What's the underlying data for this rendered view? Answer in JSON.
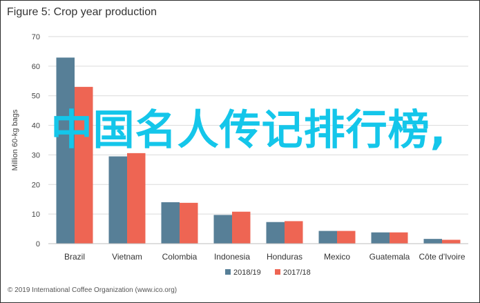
{
  "title": "Figure 5: Crop year production",
  "overlay_text": "中国名人传记排行榜,",
  "source": "© 2019 International Coffee Organization (www.ico.org)",
  "colors": {
    "series1": "#577f97",
    "series2": "#ee6553",
    "grid": "#dadada",
    "overlay": "#14c6ea"
  },
  "chart_data": {
    "type": "bar",
    "title": "Figure 5: Crop year production",
    "ylabel": "Million 60-kg bags",
    "xlabel": "",
    "ylim": [
      0,
      70
    ],
    "yticks": [
      0,
      10,
      20,
      30,
      40,
      50,
      60,
      70
    ],
    "grid": true,
    "legend_position": "bottom",
    "categories": [
      "Brazil",
      "Vietnam",
      "Colombia",
      "Indonesia",
      "Honduras",
      "Mexico",
      "Guatemala",
      "Côte d'Ivoire"
    ],
    "series": [
      {
        "name": "2018/19",
        "values": [
          62.9,
          29.5,
          14.0,
          9.7,
          7.3,
          4.3,
          3.8,
          1.6
        ]
      },
      {
        "name": "2017/18",
        "values": [
          53.0,
          30.6,
          13.8,
          10.8,
          7.6,
          4.3,
          3.8,
          1.3
        ]
      }
    ]
  }
}
